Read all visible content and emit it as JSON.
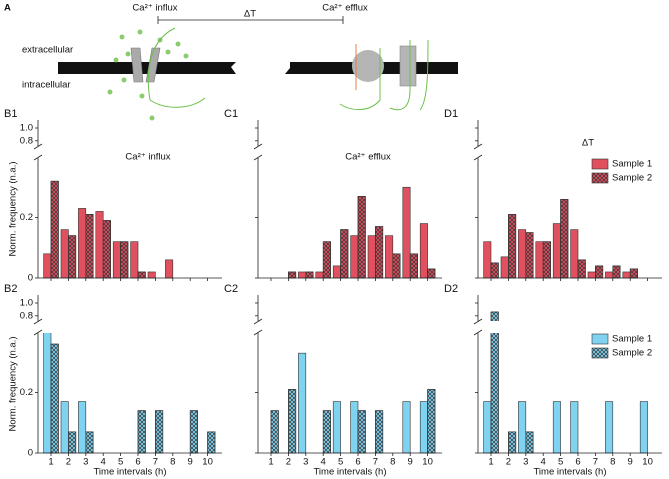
{
  "diagram": {
    "label": "A",
    "influx": "Ca²⁺ influx",
    "efflux": "Ca²⁺ efflux",
    "interval": "ΔT",
    "outside": "extracellular",
    "inside": "intracellular"
  },
  "chart_data": [
    {
      "type": "bar",
      "title": "B1",
      "annotation": "Ca²⁺ influx",
      "ylabel": "Norm. frequency (n.a.)",
      "show_ytick_labels": true,
      "categories": [
        null,
        null,
        null,
        null,
        null,
        null,
        null,
        null,
        null,
        null
      ],
      "ylim": [
        0,
        1
      ],
      "ybreak": [
        0.39,
        0.75
      ],
      "yticks": [
        0,
        0.2,
        0.8,
        {
          "value": 1,
          "label": "1.0"
        }
      ],
      "series": [
        {
          "name": "Sample 1",
          "color": "#e0505f",
          "pattern": "solid",
          "values": [
            0.08,
            0.16,
            0.23,
            0.22,
            0.12,
            0.12,
            0.02,
            0.06,
            0,
            0
          ]
        },
        {
          "name": "Sample 2",
          "color": "#e0505f",
          "pattern": "crosshatch",
          "values": [
            0.32,
            0.14,
            0.21,
            0.19,
            0.12,
            0.02,
            0,
            0,
            0,
            0
          ]
        }
      ]
    },
    {
      "type": "bar",
      "title": "C1",
      "annotation": "Ca²⁺ efflux",
      "show_ytick_labels": false,
      "categories": [
        null,
        null,
        null,
        null,
        null,
        null,
        null,
        null,
        null,
        null
      ],
      "ylim": [
        0,
        1
      ],
      "ybreak": [
        0.39,
        0.75
      ],
      "yticks": [
        0,
        0.2,
        0.8,
        1
      ],
      "series": [
        {
          "name": "Sample 1",
          "color": "#e0505f",
          "pattern": "solid",
          "values": [
            0,
            0,
            0.02,
            0.02,
            0.04,
            0.14,
            0.14,
            0.14,
            0.3,
            0.18
          ]
        },
        {
          "name": "Sample 2",
          "color": "#e0505f",
          "pattern": "crosshatch",
          "values": [
            0,
            0.02,
            0.02,
            0.12,
            0.16,
            0.27,
            0.17,
            0.08,
            0.08,
            0.03
          ]
        }
      ]
    },
    {
      "type": "bar",
      "title": "D1",
      "annotation": "ΔT",
      "show_ytick_labels": false,
      "legend": "upper right",
      "categories": [
        null,
        null,
        null,
        null,
        null,
        null,
        null,
        null,
        null,
        null
      ],
      "ylim": [
        0,
        1
      ],
      "ybreak": [
        0.39,
        0.75
      ],
      "yticks": [
        0,
        0.2,
        0.8,
        1
      ],
      "series": [
        {
          "name": "Sample 1",
          "color": "#e0505f",
          "pattern": "solid",
          "values": [
            0.12,
            0.07,
            0.16,
            0.12,
            0.18,
            0.16,
            0.02,
            0.02,
            0.02,
            0
          ]
        },
        {
          "name": "Sample 2",
          "color": "#e0505f",
          "pattern": "crosshatch",
          "values": [
            0.05,
            0.21,
            0.15,
            0.12,
            0.26,
            0.06,
            0.04,
            0.04,
            0.03,
            0
          ]
        }
      ]
    },
    {
      "type": "bar",
      "title": "B2",
      "ylabel": "Norm. frequency (n.a.)",
      "xlabel": "Time intervals (h)",
      "show_ytick_labels": true,
      "categories": [
        "1",
        "2",
        "3",
        "4",
        "5",
        "6",
        "7",
        "8",
        "9",
        "10"
      ],
      "ylim": [
        0,
        1
      ],
      "ybreak": [
        0.39,
        0.75
      ],
      "yticks": [
        0,
        0.2,
        0.8,
        {
          "value": 1,
          "label": "1.0"
        }
      ],
      "series": [
        {
          "name": "Sample 1",
          "color": "#7fd2f0",
          "pattern": "solid",
          "values": [
            0.67,
            0.17,
            0.17,
            0,
            0,
            0,
            0,
            0,
            0,
            0
          ]
        },
        {
          "name": "Sample 2",
          "color": "#7fd2f0",
          "pattern": "crosshatch",
          "values": [
            0.36,
            0.07,
            0.07,
            0,
            0,
            0.14,
            0.14,
            0,
            0.14,
            0.07
          ]
        }
      ]
    },
    {
      "type": "bar",
      "title": "C2",
      "xlabel": "Time intervals (h)",
      "show_ytick_labels": false,
      "categories": [
        "1",
        "2",
        "3",
        "4",
        "5",
        "6",
        "7",
        "8",
        "9",
        "10"
      ],
      "ylim": [
        0,
        1
      ],
      "ybreak": [
        0.39,
        0.75
      ],
      "yticks": [
        0,
        0.2,
        0.8,
        1
      ],
      "series": [
        {
          "name": "Sample 1",
          "color": "#7fd2f0",
          "pattern": "solid",
          "values": [
            0,
            0,
            0.33,
            0,
            0.17,
            0.17,
            0,
            0,
            0.17,
            0.17
          ]
        },
        {
          "name": "Sample 2",
          "color": "#7fd2f0",
          "pattern": "crosshatch",
          "values": [
            0.14,
            0.21,
            0,
            0.14,
            0,
            0.14,
            0.14,
            0,
            0,
            0.21
          ]
        }
      ]
    },
    {
      "type": "bar",
      "title": "D2",
      "xlabel": "Time intervals (h)",
      "show_ytick_labels": false,
      "legend": "upper right",
      "categories": [
        "1",
        "2",
        "3",
        "4",
        "5",
        "6",
        "7",
        "8",
        "9",
        "10"
      ],
      "ylim": [
        0,
        1
      ],
      "ybreak": [
        0.39,
        0.75
      ],
      "yticks": [
        0,
        0.2,
        0.8,
        1
      ],
      "series": [
        {
          "name": "Sample 1",
          "color": "#7fd2f0",
          "pattern": "solid",
          "values": [
            0.17,
            0,
            0.17,
            0,
            0.17,
            0.17,
            0,
            0.17,
            0,
            0.17
          ]
        },
        {
          "name": "Sample 2",
          "color": "#7fd2f0",
          "pattern": "crosshatch",
          "values": [
            0.86,
            0.07,
            0.07,
            0,
            0,
            0,
            0,
            0,
            0,
            0
          ]
        }
      ]
    }
  ]
}
